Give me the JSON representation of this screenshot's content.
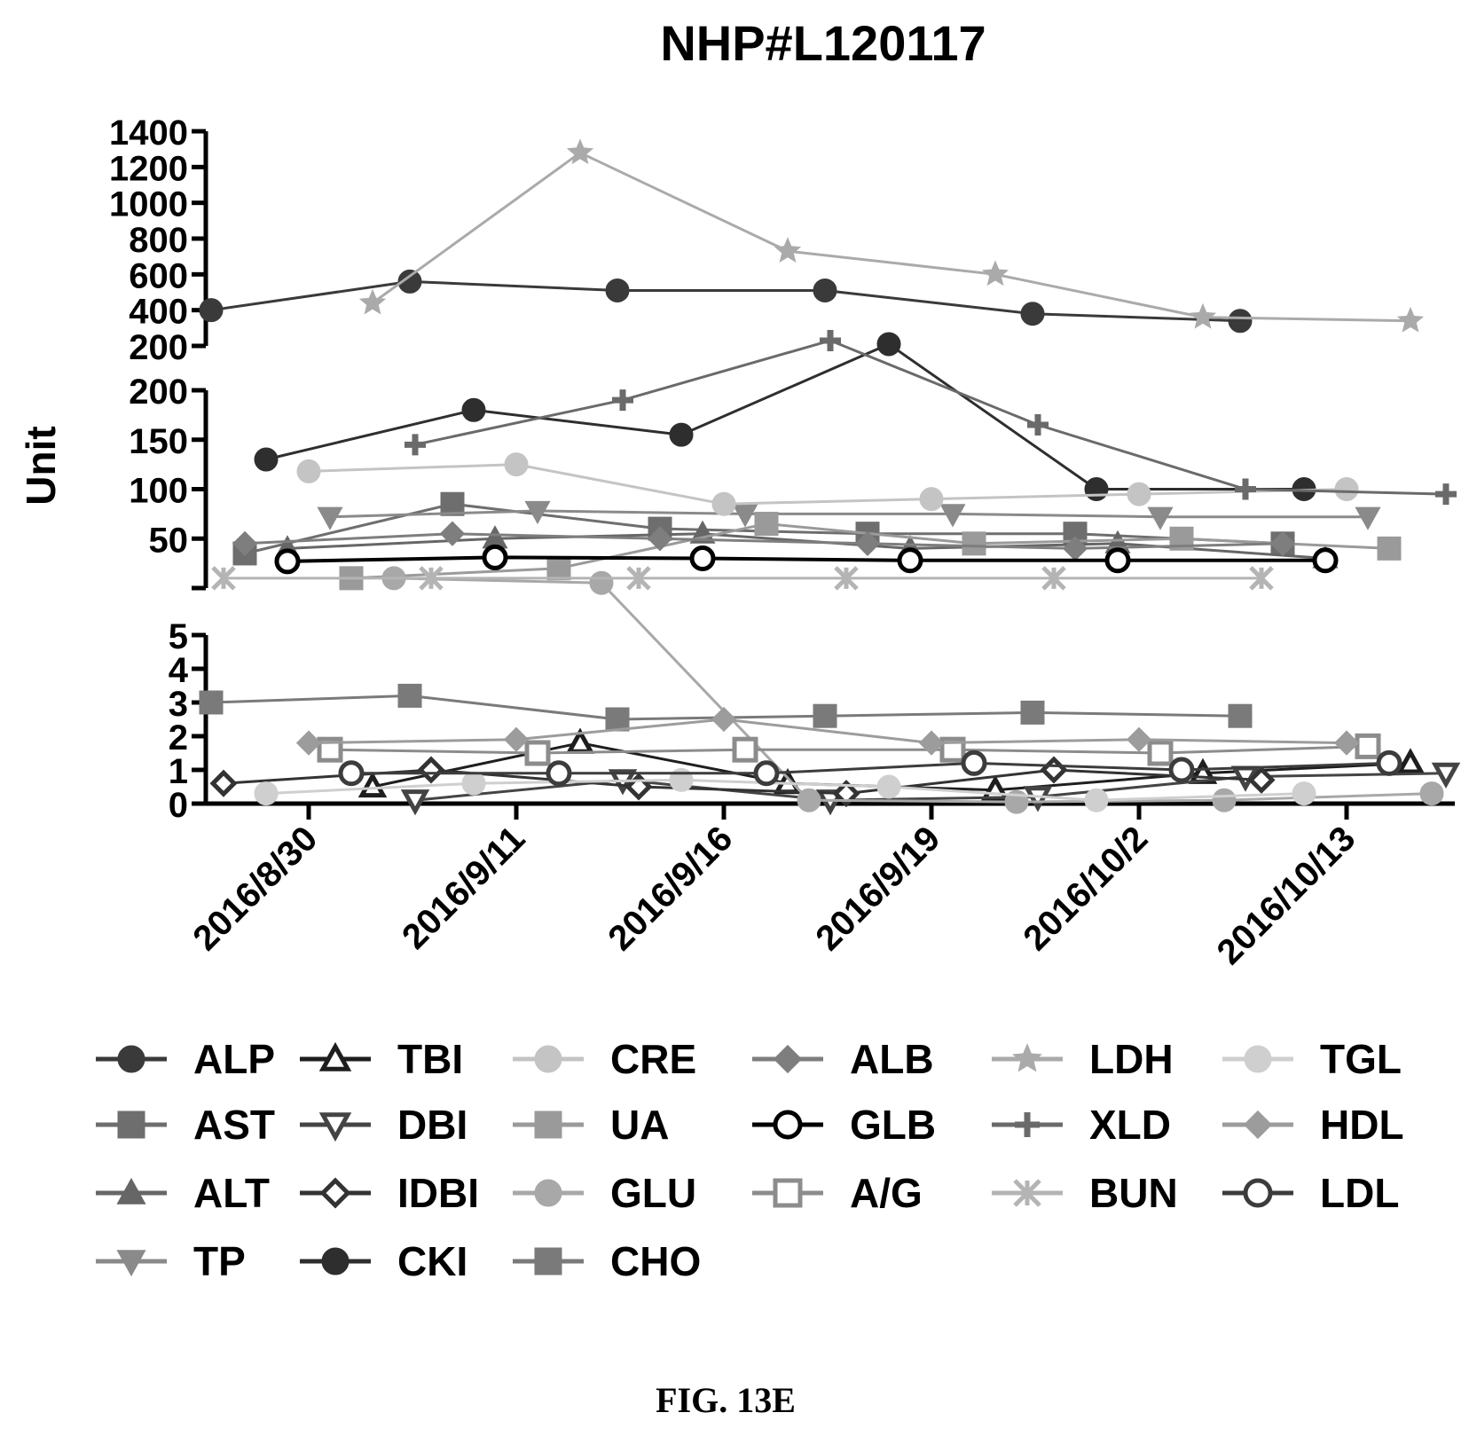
{
  "chart_data": {
    "type": "line",
    "title": "NHP#L120117",
    "ylabel": "Unit",
    "xlabel": "",
    "caption": "FIG. 13E",
    "categories": [
      "2016/8/30",
      "2016/9/11",
      "2016/9/16",
      "2016/9/19",
      "2016/10/2",
      "2016/10/13"
    ],
    "y_segments": [
      {
        "range": [
          200,
          1400
        ],
        "ticks": [
          200,
          400,
          600,
          800,
          1000,
          1200,
          1400
        ]
      },
      {
        "range": [
          0,
          200
        ],
        "ticks": [
          50,
          100,
          150,
          200
        ]
      },
      {
        "range": [
          0,
          5
        ],
        "ticks": [
          0,
          1,
          2,
          3,
          4,
          5
        ]
      }
    ],
    "grid": false,
    "legend_position": "bottom",
    "series": [
      {
        "name": "ALP",
        "marker": "circle-filled",
        "color": "#3a3a3a",
        "values": [
          400,
          560,
          510,
          510,
          380,
          340
        ]
      },
      {
        "name": "AST",
        "marker": "square-filled",
        "color": "#6e6e6e",
        "values": [
          35,
          85,
          60,
          55,
          55,
          45
        ]
      },
      {
        "name": "ALT",
        "marker": "triangle-filled",
        "color": "#666666",
        "values": [
          40,
          50,
          55,
          40,
          45,
          30
        ]
      },
      {
        "name": "TP",
        "marker": "triangle-down-filled",
        "color": "#8a8a8a",
        "values": [
          72,
          78,
          75,
          75,
          72,
          72
        ]
      },
      {
        "name": "TBI",
        "marker": "triangle-open",
        "color": "#1e1e1e",
        "values": [
          0.5,
          1.8,
          0.6,
          0.4,
          0.9,
          1.2
        ]
      },
      {
        "name": "DBI",
        "marker": "triangle-down-open",
        "color": "#444444",
        "values": [
          0.1,
          0.7,
          0.1,
          0.2,
          0.8,
          0.9
        ]
      },
      {
        "name": "IDBI",
        "marker": "diamond-open",
        "color": "#333333",
        "values": [
          0.6,
          1.0,
          0.5,
          0.3,
          1.0,
          0.7
        ]
      },
      {
        "name": "CKI",
        "marker": "circle-filled",
        "color": "#2e2e2e",
        "values": [
          130,
          180,
          155,
          210,
          100,
          100
        ]
      },
      {
        "name": "CRE",
        "marker": "circle-filled",
        "color": "#c4c4c4",
        "values": [
          118,
          125,
          85,
          90,
          95,
          100
        ]
      },
      {
        "name": "UA",
        "marker": "square-filled",
        "color": "#9a9a9a",
        "values": [
          10,
          20,
          65,
          45,
          50,
          40
        ]
      },
      {
        "name": "GLU",
        "marker": "circle-filled",
        "color": "#a8a8a8",
        "values": [
          10,
          5.2,
          0.1,
          0.05,
          0.1,
          0.3
        ]
      },
      {
        "name": "CHO",
        "marker": "square-filled",
        "color": "#7a7a7a",
        "values": [
          3.0,
          3.2,
          2.5,
          2.6,
          2.7,
          2.6
        ]
      },
      {
        "name": "ALB",
        "marker": "diamond-filled",
        "color": "#7e7e7e",
        "values": [
          45,
          55,
          50,
          45,
          40,
          45
        ]
      },
      {
        "name": "GLB",
        "marker": "circle-open",
        "color": "#000000",
        "values": [
          27,
          31,
          30,
          28,
          28,
          28
        ]
      },
      {
        "name": "A/G",
        "marker": "square-open",
        "color": "#8c8c8c",
        "values": [
          1.6,
          1.5,
          1.6,
          1.6,
          1.5,
          1.7
        ]
      },
      {
        "name": "LDH",
        "marker": "star",
        "color": "#aaaaaa",
        "values": [
          440,
          1280,
          730,
          600,
          360,
          340
        ]
      },
      {
        "name": "XLD",
        "marker": "cross",
        "color": "#6a6a6a",
        "values": [
          145,
          190,
          230,
          165,
          100,
          95
        ]
      },
      {
        "name": "BUN",
        "marker": "asterisk",
        "color": "#b4b4b4",
        "values": [
          10,
          10,
          10,
          10,
          10,
          10
        ]
      },
      {
        "name": "TGL",
        "marker": "circle-filled",
        "color": "#cfcfcf",
        "values": [
          0.3,
          0.6,
          0.7,
          0.5,
          0.1,
          0.3
        ]
      },
      {
        "name": "HDL",
        "marker": "diamond-filled",
        "color": "#9c9c9c",
        "values": [
          1.8,
          1.9,
          2.5,
          1.8,
          1.9,
          1.8
        ]
      },
      {
        "name": "LDL",
        "marker": "circle-open",
        "color": "#3c3c3c",
        "values": [
          0.9,
          0.9,
          0.9,
          1.2,
          1.0,
          1.2
        ]
      }
    ]
  }
}
